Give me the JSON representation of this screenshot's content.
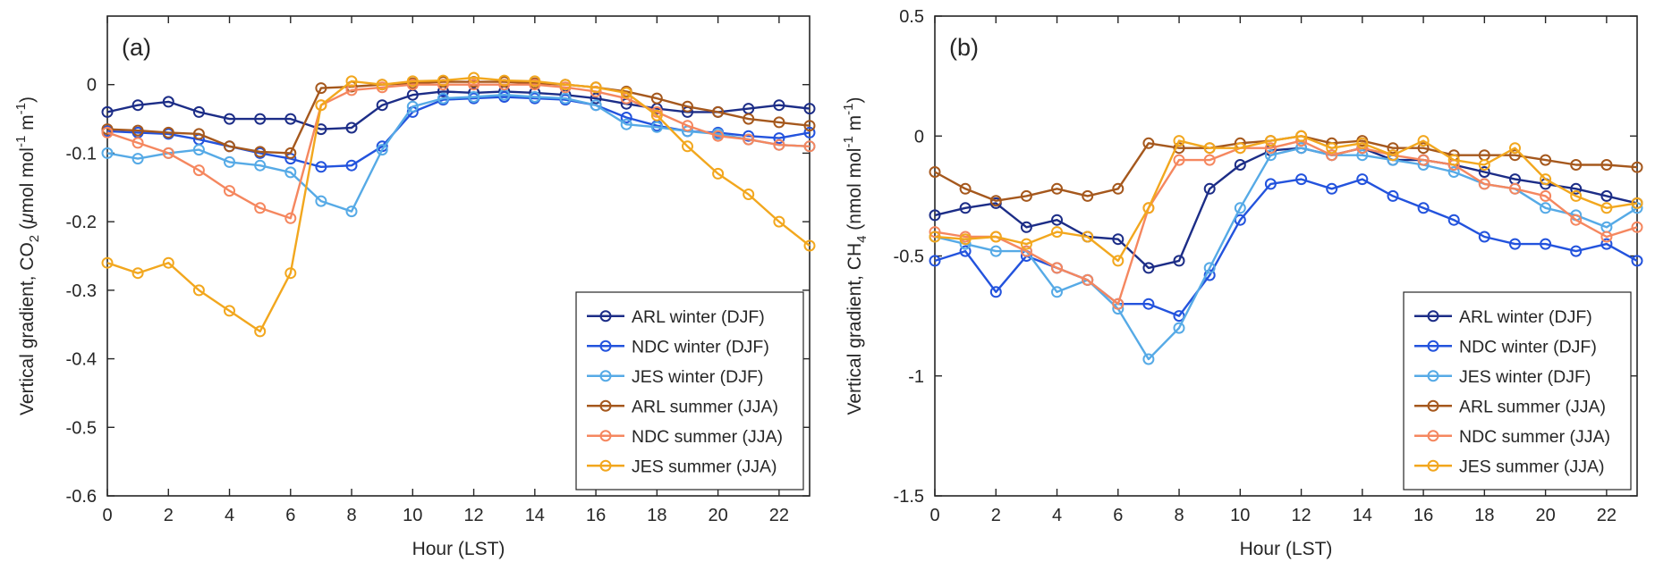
{
  "figure": {
    "background": "#ffffff",
    "panel_labels": [
      "(a)",
      "(b)"
    ],
    "legend_entries": [
      "ARL winter (DJF)",
      "NDC winter (DJF)",
      "JES winter (DJF)",
      "ARL summer (JJA)",
      "NDC summer (JJA)",
      "JES summer (JJA)"
    ],
    "series_colors": {
      "arl_winter": "#1c2d87",
      "ndc_winter": "#2353dd",
      "jes_winter": "#56aae6",
      "arl_summer": "#a5581d",
      "ndc_summer": "#f5875f",
      "jes_summer": "#f2a71e"
    },
    "axis_color": "#262626",
    "text_color": "#262626"
  },
  "chart_data": [
    {
      "type": "line",
      "panel_label": "(a)",
      "xlabel": "Hour (LST)",
      "ylabel": "Vertical gradient, CO2 (μmol mol-1 m-1)",
      "ylabel_parts": [
        {
          "text": "Vertical gradient, CO",
          "script": "normal"
        },
        {
          "text": "2",
          "script": "sub"
        },
        {
          "text": " (",
          "script": "normal"
        },
        {
          "text": "μ",
          "script": "normal",
          "italic": true
        },
        {
          "text": "mol mol",
          "script": "normal"
        },
        {
          "text": "-1",
          "script": "sup"
        },
        {
          "text": " m",
          "script": "normal"
        },
        {
          "text": "-1",
          "script": "sup"
        },
        {
          "text": ")",
          "script": "normal"
        }
      ],
      "xlim": [
        0,
        23
      ],
      "ylim": [
        -0.6,
        0.1
      ],
      "xticks": [
        0,
        2,
        4,
        6,
        8,
        10,
        12,
        14,
        16,
        18,
        20,
        22
      ],
      "xtick_labels": [
        "0",
        "2",
        "4",
        "6",
        "8",
        "10",
        "12",
        "14",
        "16",
        "18",
        "20",
        "22"
      ],
      "yticks": [
        0,
        -0.1,
        -0.2,
        -0.3,
        -0.4,
        -0.5,
        -0.6
      ],
      "ytick_labels": [
        "0",
        "-0.1",
        "-0.2",
        "-0.3",
        "-0.4",
        "-0.5",
        "-0.6"
      ],
      "grid": false,
      "legend_position": "lower right",
      "x": [
        0,
        1,
        2,
        3,
        4,
        5,
        6,
        7,
        8,
        9,
        10,
        11,
        12,
        13,
        14,
        15,
        16,
        17,
        18,
        19,
        20,
        21,
        22,
        23
      ],
      "series": [
        {
          "key": "arl-winter",
          "name": "ARL winter (DJF)",
          "color": "#1c2d87",
          "values": [
            -0.04,
            -0.03,
            -0.025,
            -0.04,
            -0.05,
            -0.05,
            -0.05,
            -0.065,
            -0.063,
            -0.03,
            -0.015,
            -0.01,
            -0.012,
            -0.01,
            -0.012,
            -0.015,
            -0.02,
            -0.028,
            -0.035,
            -0.04,
            -0.04,
            -0.035,
            -0.03,
            -0.035
          ]
        },
        {
          "key": "ndc-winter",
          "name": "NDC winter (DJF)",
          "color": "#2353dd",
          "values": [
            -0.068,
            -0.07,
            -0.072,
            -0.08,
            -0.09,
            -0.1,
            -0.108,
            -0.12,
            -0.118,
            -0.09,
            -0.04,
            -0.022,
            -0.02,
            -0.018,
            -0.02,
            -0.022,
            -0.03,
            -0.048,
            -0.06,
            -0.068,
            -0.07,
            -0.075,
            -0.078,
            -0.07
          ]
        },
        {
          "key": "jes-winter",
          "name": "JES winter (DJF)",
          "color": "#56aae6",
          "values": [
            -0.1,
            -0.108,
            -0.1,
            -0.095,
            -0.113,
            -0.118,
            -0.128,
            -0.17,
            -0.185,
            -0.095,
            -0.032,
            -0.02,
            -0.018,
            -0.015,
            -0.018,
            -0.02,
            -0.03,
            -0.058,
            -0.062,
            -0.068,
            -0.072,
            -0.08,
            -0.088,
            -0.09
          ]
        },
        {
          "key": "arl-summer",
          "name": "ARL summer (JJA)",
          "color": "#a5581d",
          "values": [
            -0.065,
            -0.067,
            -0.07,
            -0.072,
            -0.09,
            -0.098,
            -0.1,
            -0.005,
            -0.003,
            0,
            0.002,
            0.004,
            0.004,
            0.004,
            0.002,
            0,
            -0.004,
            -0.01,
            -0.02,
            -0.032,
            -0.04,
            -0.05,
            -0.055,
            -0.06
          ]
        },
        {
          "key": "ndc-summer",
          "name": "NDC summer (JJA)",
          "color": "#f5875f",
          "values": [
            -0.07,
            -0.085,
            -0.1,
            -0.125,
            -0.155,
            -0.18,
            -0.195,
            -0.03,
            -0.008,
            -0.004,
            0,
            0,
            0,
            0,
            0,
            -0.004,
            -0.01,
            -0.02,
            -0.04,
            -0.06,
            -0.075,
            -0.08,
            -0.088,
            -0.09
          ]
        },
        {
          "key": "jes-summer",
          "name": "JES summer (JJA)",
          "color": "#f2a71e",
          "values": [
            -0.26,
            -0.275,
            -0.26,
            -0.3,
            -0.33,
            -0.36,
            -0.275,
            -0.03,
            0.005,
            0,
            0.005,
            0.006,
            0.01,
            0.006,
            0.005,
            0,
            -0.004,
            -0.012,
            -0.045,
            -0.09,
            -0.13,
            -0.16,
            -0.2,
            -0.235
          ]
        }
      ]
    },
    {
      "type": "line",
      "panel_label": "(b)",
      "xlabel": "Hour (LST)",
      "ylabel": "Vertical gradient, CH4 (nmol mol-1 m-1)",
      "ylabel_parts": [
        {
          "text": "Vertical gradient, CH",
          "script": "normal"
        },
        {
          "text": "4",
          "script": "sub"
        },
        {
          "text": " (nmol mol",
          "script": "normal"
        },
        {
          "text": "-1",
          "script": "sup"
        },
        {
          "text": " m",
          "script": "normal"
        },
        {
          "text": "-1",
          "script": "sup"
        },
        {
          "text": ")",
          "script": "normal"
        }
      ],
      "xlim": [
        0,
        23
      ],
      "ylim": [
        -1.5,
        0.5
      ],
      "xticks": [
        0,
        2,
        4,
        6,
        8,
        10,
        12,
        14,
        16,
        18,
        20,
        22
      ],
      "xtick_labels": [
        "0",
        "2",
        "4",
        "6",
        "8",
        "10",
        "12",
        "14",
        "16",
        "18",
        "20",
        "22"
      ],
      "yticks": [
        0.5,
        0,
        -0.5,
        -1,
        -1.5
      ],
      "ytick_labels": [
        "0.5",
        "0",
        "-0.5",
        "-1",
        "-1.5"
      ],
      "grid": false,
      "legend_position": "lower right",
      "x": [
        0,
        1,
        2,
        3,
        4,
        5,
        6,
        7,
        8,
        9,
        10,
        11,
        12,
        13,
        14,
        15,
        16,
        17,
        18,
        19,
        20,
        21,
        22,
        23
      ],
      "series": [
        {
          "key": "arl-winter",
          "name": "ARL winter (DJF)",
          "color": "#1c2d87",
          "values": [
            -0.33,
            -0.3,
            -0.28,
            -0.38,
            -0.35,
            -0.42,
            -0.43,
            -0.55,
            -0.52,
            -0.22,
            -0.12,
            -0.06,
            -0.05,
            -0.08,
            -0.05,
            -0.1,
            -0.1,
            -0.12,
            -0.15,
            -0.18,
            -0.2,
            -0.22,
            -0.25,
            -0.28
          ]
        },
        {
          "key": "ndc-winter",
          "name": "NDC winter (DJF)",
          "color": "#2353dd",
          "values": [
            -0.52,
            -0.48,
            -0.65,
            -0.5,
            -0.55,
            -0.6,
            -0.7,
            -0.7,
            -0.75,
            -0.58,
            -0.35,
            -0.2,
            -0.18,
            -0.22,
            -0.18,
            -0.25,
            -0.3,
            -0.35,
            -0.42,
            -0.45,
            -0.45,
            -0.48,
            -0.45,
            -0.52
          ]
        },
        {
          "key": "jes-winter",
          "name": "JES winter (DJF)",
          "color": "#56aae6",
          "values": [
            -0.42,
            -0.45,
            -0.48,
            -0.48,
            -0.65,
            -0.6,
            -0.72,
            -0.93,
            -0.8,
            -0.55,
            -0.3,
            -0.08,
            -0.05,
            -0.08,
            -0.08,
            -0.1,
            -0.12,
            -0.15,
            -0.2,
            -0.22,
            -0.3,
            -0.33,
            -0.38,
            -0.3
          ]
        },
        {
          "key": "arl-summer",
          "name": "ARL summer (JJA)",
          "color": "#a5581d",
          "values": [
            -0.15,
            -0.22,
            -0.27,
            -0.25,
            -0.22,
            -0.25,
            -0.22,
            -0.03,
            -0.05,
            -0.05,
            -0.03,
            -0.02,
            0,
            -0.03,
            -0.02,
            -0.05,
            -0.05,
            -0.08,
            -0.08,
            -0.08,
            -0.1,
            -0.12,
            -0.12,
            -0.13
          ]
        },
        {
          "key": "ndc-summer",
          "name": "NDC summer (JJA)",
          "color": "#f5875f",
          "values": [
            -0.4,
            -0.42,
            -0.42,
            -0.48,
            -0.55,
            -0.6,
            -0.7,
            -0.3,
            -0.1,
            -0.1,
            -0.05,
            -0.05,
            -0.02,
            -0.08,
            -0.05,
            -0.08,
            -0.1,
            -0.12,
            -0.2,
            -0.22,
            -0.25,
            -0.35,
            -0.42,
            -0.38
          ]
        },
        {
          "key": "jes-summer",
          "name": "JES summer (JJA)",
          "color": "#f2a71e",
          "values": [
            -0.42,
            -0.43,
            -0.42,
            -0.45,
            -0.4,
            -0.42,
            -0.52,
            -0.3,
            -0.02,
            -0.05,
            -0.05,
            -0.02,
            0,
            -0.05,
            -0.03,
            -0.08,
            -0.02,
            -0.1,
            -0.12,
            -0.05,
            -0.18,
            -0.25,
            -0.3,
            -0.28
          ]
        }
      ]
    }
  ]
}
